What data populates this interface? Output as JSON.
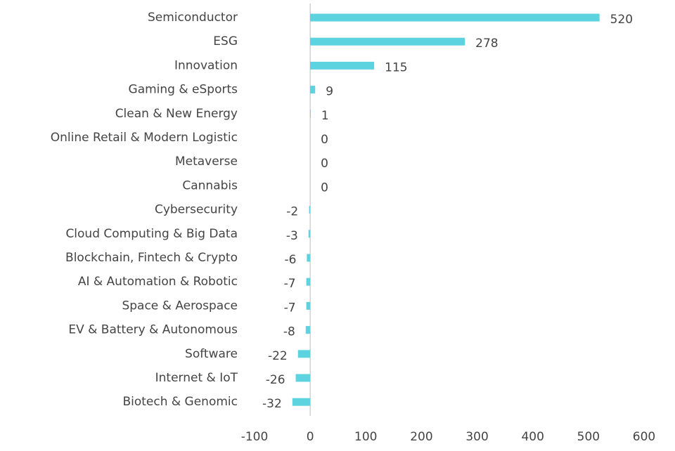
{
  "chart_data": {
    "type": "bar",
    "orientation": "horizontal",
    "categories": [
      "Semiconductor",
      "ESG",
      "Innovation",
      "Gaming & eSports",
      "Clean & New Energy",
      "Online Retail & Modern Logistic",
      "Metaverse",
      "Cannabis",
      "Cybersecurity",
      "Cloud Computing & Big Data",
      "Blockchain, Fintech & Crypto",
      "AI & Automation & Robotic",
      "Space & Aerospace",
      "EV & Battery & Autonomous",
      "Software",
      "Internet & IoT",
      "Biotech & Genomic"
    ],
    "values": [
      520,
      278,
      115,
      9,
      1,
      0,
      0,
      0,
      -2,
      -3,
      -6,
      -7,
      -7,
      -8,
      -22,
      -26,
      -32
    ],
    "color": "#5dd3e0",
    "xlim": [
      -100,
      600
    ],
    "xticks": [
      -100,
      0,
      100,
      200,
      300,
      400,
      500,
      600
    ],
    "grid": false
  }
}
